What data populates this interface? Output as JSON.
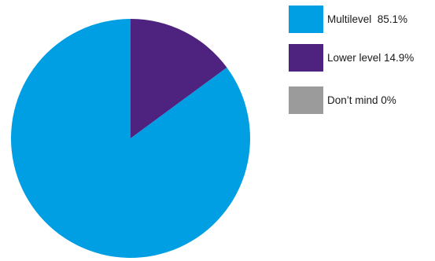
{
  "chart_data": {
    "type": "pie",
    "title": "",
    "slices": [
      {
        "label": "Multilevel  85.1%",
        "category": "Multilevel",
        "value": 85.1,
        "color": "#009fe3"
      },
      {
        "label": "Lower level 14.9%",
        "category": "Lower level",
        "value": 14.9,
        "color": "#4e237f"
      },
      {
        "label": "Don’t mind 0%",
        "category": "Don’t mind",
        "value": 0,
        "color": "#9b9b9b"
      }
    ],
    "start_angle": "12 o'clock",
    "direction": "counter-clockwise",
    "legend_position": "right"
  }
}
